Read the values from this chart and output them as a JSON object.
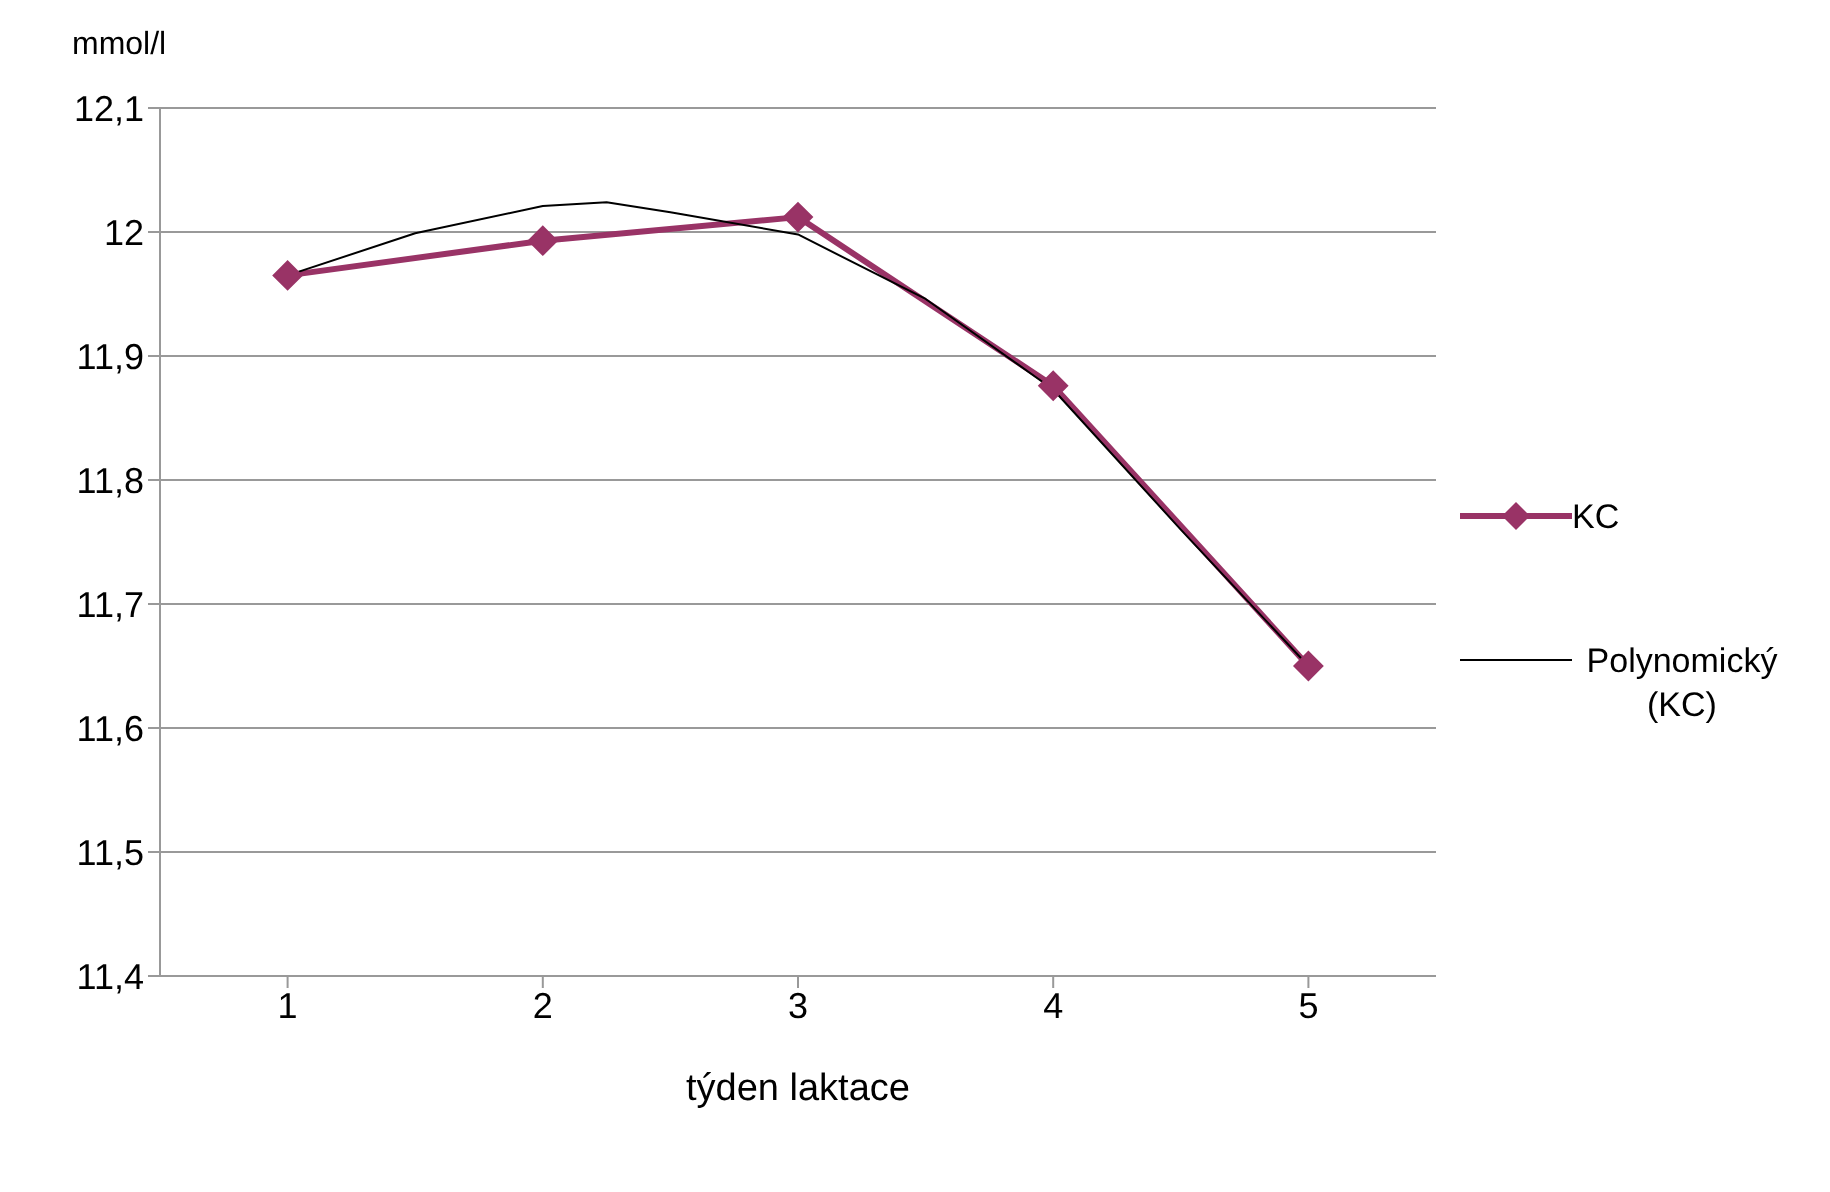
{
  "chart_data": {
    "type": "line",
    "ylabel": "mmol/l",
    "xlabel": "týden laktace",
    "x": [
      1,
      2,
      3,
      4,
      5
    ],
    "xlim": [
      0.5,
      5.5
    ],
    "xticks": [
      1,
      2,
      3,
      4,
      5
    ],
    "ylim": [
      11.4,
      12.1
    ],
    "yticks": [
      {
        "value": 11.4,
        "label": "11,4"
      },
      {
        "value": 11.5,
        "label": "11,5"
      },
      {
        "value": 11.6,
        "label": "11,6"
      },
      {
        "value": 11.7,
        "label": "11,7"
      },
      {
        "value": 11.8,
        "label": "11,8"
      },
      {
        "value": 11.9,
        "label": "11,9"
      },
      {
        "value": 12,
        "label": "12"
      },
      {
        "value": 12.1,
        "label": "12,1"
      }
    ],
    "grid": "y",
    "legend": "right",
    "series": [
      {
        "name": "KC",
        "color": "#993366",
        "marker": "diamond",
        "values": [
          11.965,
          11.993,
          12.012,
          11.876,
          11.65
        ]
      },
      {
        "name": "Polynomický (KC)",
        "color": "#000000",
        "marker": "none",
        "x": [
          1,
          1.5,
          2,
          2.25,
          2.5,
          3,
          3.5,
          4,
          4.5,
          5
        ],
        "values": [
          11.965,
          11.999,
          12.021,
          12.024,
          12.016,
          11.998,
          11.946,
          11.873,
          11.76,
          11.65
        ]
      }
    ]
  }
}
